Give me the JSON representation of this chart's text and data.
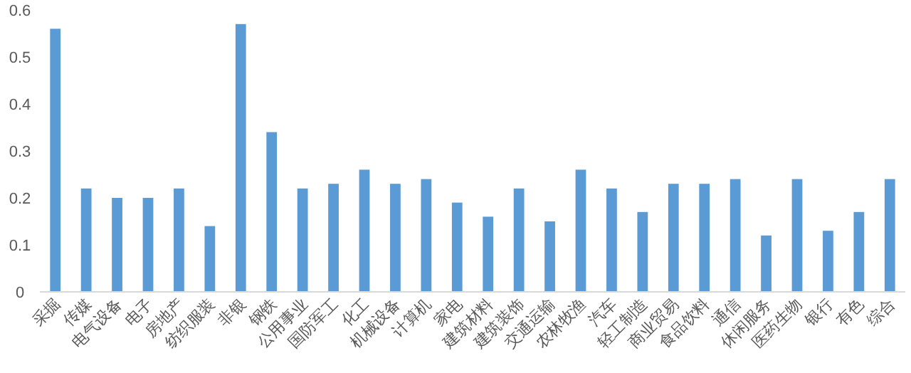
{
  "chart_data": {
    "type": "bar",
    "categories": [
      "采掘",
      "传媒",
      "电气设备",
      "电子",
      "房地产",
      "纺织服装",
      "非银",
      "钢铁",
      "公用事业",
      "国防军工",
      "化工",
      "机械设备",
      "计算机",
      "家电",
      "建筑材料",
      "建筑装饰",
      "交通运输",
      "农林牧渔",
      "汽车",
      "轻工制造",
      "商业贸易",
      "食品饮料",
      "通信",
      "休闲服务",
      "医药生物",
      "银行",
      "有色",
      "综合"
    ],
    "values": [
      0.56,
      0.22,
      0.2,
      0.2,
      0.22,
      0.14,
      0.57,
      0.34,
      0.22,
      0.23,
      0.26,
      0.23,
      0.24,
      0.19,
      0.16,
      0.22,
      0.15,
      0.26,
      0.22,
      0.17,
      0.23,
      0.23,
      0.24,
      0.12,
      0.24,
      0.13,
      0.17,
      0.24
    ],
    "color": "#5b9bd5",
    "ylim": [
      0,
      0.6
    ],
    "yticks": [
      0,
      0.1,
      0.2,
      0.3,
      0.4,
      0.5,
      0.6
    ]
  }
}
